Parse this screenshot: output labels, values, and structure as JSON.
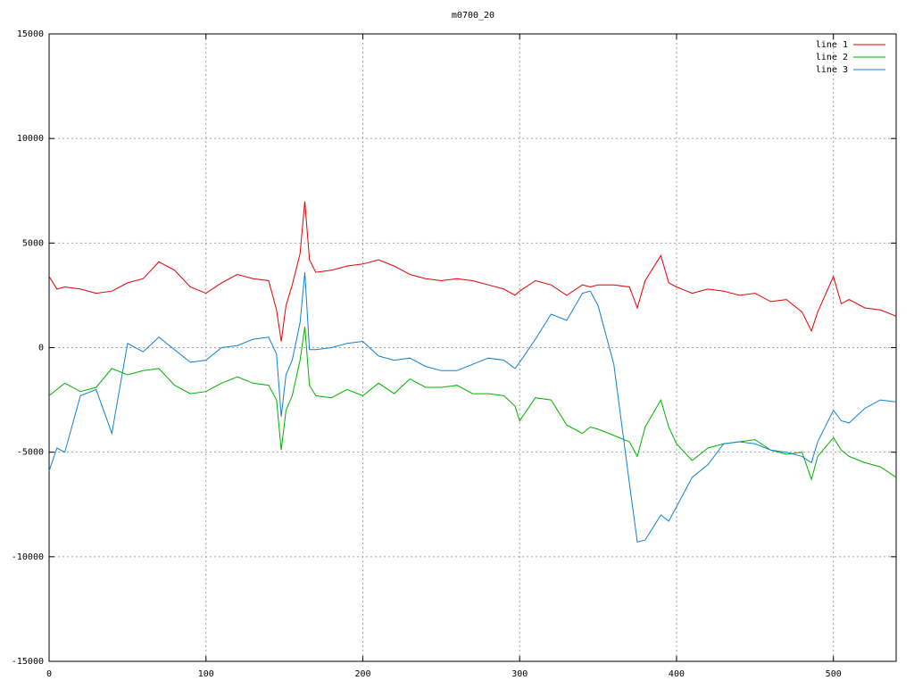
{
  "chart_data": {
    "type": "line",
    "title": "m0700_20",
    "x": [
      0,
      5,
      10,
      20,
      30,
      40,
      50,
      60,
      70,
      80,
      90,
      100,
      110,
      120,
      130,
      140,
      145,
      148,
      151,
      155,
      160,
      163,
      166,
      170,
      180,
      190,
      200,
      210,
      220,
      230,
      240,
      250,
      260,
      270,
      280,
      290,
      297,
      300,
      310,
      320,
      330,
      340,
      345,
      350,
      360,
      370,
      375,
      380,
      390,
      395,
      400,
      410,
      420,
      430,
      440,
      450,
      460,
      470,
      480,
      486,
      490,
      500,
      505,
      510,
      520,
      530,
      540
    ],
    "series": [
      {
        "name": "line 1",
        "color": "#e00000",
        "values": [
          3400,
          2800,
          2900,
          2800,
          2600,
          2700,
          3100,
          3300,
          4100,
          3700,
          2900,
          2600,
          3100,
          3500,
          3300,
          3200,
          1800,
          300,
          2000,
          3000,
          4500,
          7000,
          4200,
          3600,
          3700,
          3900,
          4000,
          4200,
          3900,
          3500,
          3300,
          3200,
          3300,
          3200,
          3000,
          2800,
          2500,
          2700,
          3200,
          3000,
          2500,
          3000,
          2900,
          3000,
          3000,
          2900,
          1900,
          3200,
          4400,
          3100,
          2900,
          2600,
          2800,
          2700,
          2500,
          2600,
          2200,
          2300,
          1700,
          800,
          1700,
          3400,
          2100,
          2300,
          1900,
          1800,
          1500
        ]
      },
      {
        "name": "line 2",
        "color": "#00b000",
        "values": [
          -2300,
          -2000,
          -1700,
          -2100,
          -1900,
          -1000,
          -1300,
          -1100,
          -1000,
          -1800,
          -2200,
          -2100,
          -1700,
          -1400,
          -1700,
          -1800,
          -2500,
          -4900,
          -3000,
          -2300,
          -600,
          1000,
          -1800,
          -2300,
          -2400,
          -2000,
          -2300,
          -1700,
          -2200,
          -1500,
          -1900,
          -1900,
          -1800,
          -2200,
          -2200,
          -2300,
          -2800,
          -3500,
          -2400,
          -2500,
          -3700,
          -4100,
          -3800,
          -3900,
          -4200,
          -4500,
          -5200,
          -3800,
          -2500,
          -3800,
          -4600,
          -5400,
          -4800,
          -4600,
          -4500,
          -4400,
          -4900,
          -5100,
          -5000,
          -6300,
          -5200,
          -4300,
          -4900,
          -5200,
          -5500,
          -5700,
          -6200
        ]
      },
      {
        "name": "line 3",
        "color": "#1080d0",
        "values": [
          -5900,
          -4800,
          -5000,
          -2300,
          -2000,
          -4100,
          200,
          -200,
          500,
          -100,
          -700,
          -600,
          0,
          100,
          400,
          500,
          -300,
          -3300,
          -1300,
          -600,
          1200,
          3600,
          -100,
          -100,
          0,
          200,
          300,
          -400,
          -600,
          -500,
          -900,
          -1100,
          -1100,
          -800,
          -500,
          -600,
          -1000,
          -700,
          400,
          1600,
          1300,
          2600,
          2700,
          2000,
          -800,
          -6500,
          -9300,
          -9200,
          -8000,
          -8300,
          -7600,
          -6200,
          -5600,
          -4600,
          -4500,
          -4600,
          -4900,
          -5000,
          -5200,
          -5500,
          -4500,
          -3000,
          -3500,
          -3600,
          -2900,
          -2500,
          -2600
        ]
      }
    ],
    "xlim": [
      0,
      540
    ],
    "xticks": [
      0,
      100,
      200,
      300,
      400,
      500
    ],
    "ylim": [
      -15000,
      15000
    ],
    "yticks": [
      -15000,
      -10000,
      -5000,
      0,
      5000,
      10000,
      15000
    ],
    "grid": true,
    "legend": "top-right"
  }
}
